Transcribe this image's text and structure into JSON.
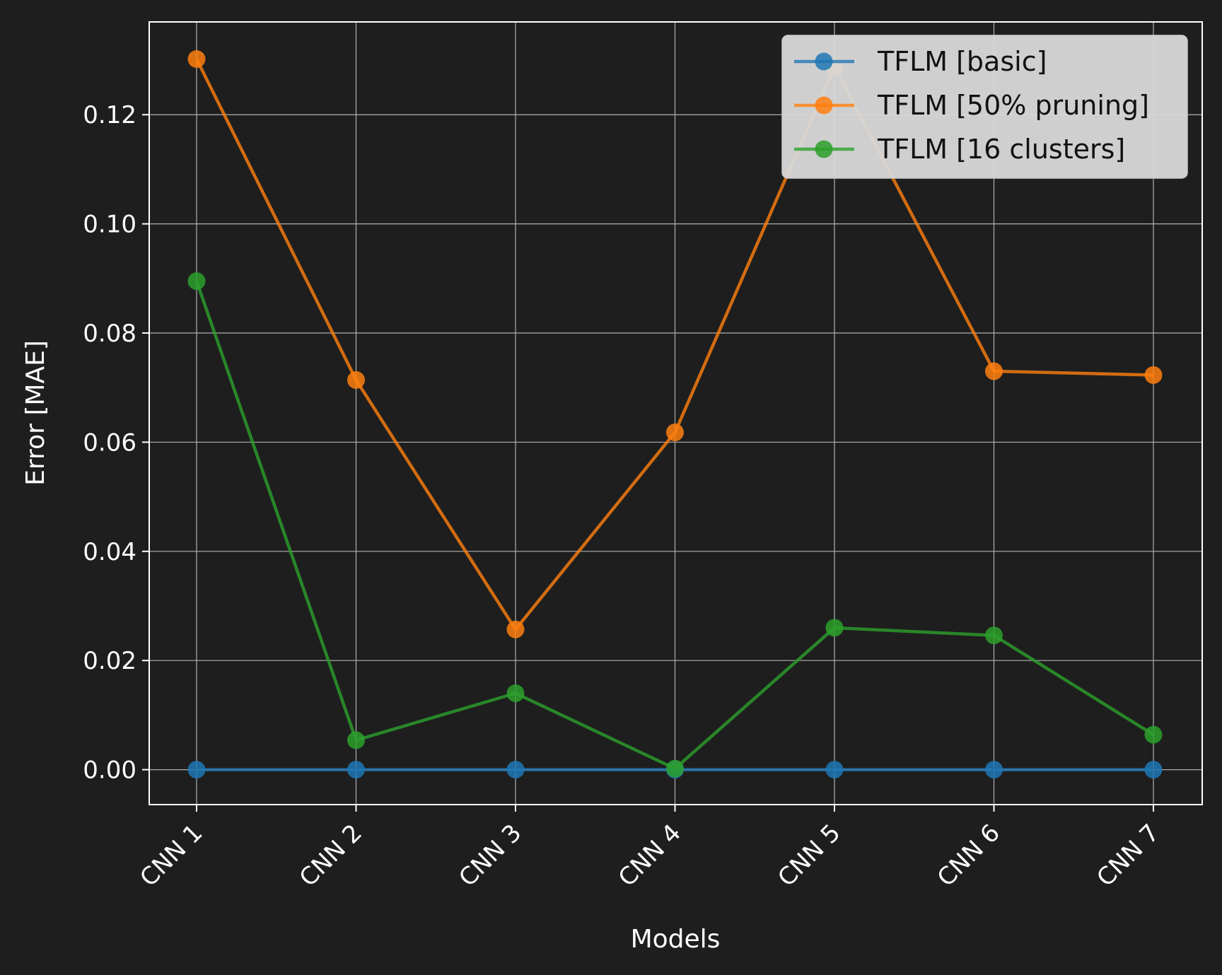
{
  "chart_data": {
    "type": "line",
    "title": "",
    "xlabel": "Models",
    "ylabel": "Error [MAE]",
    "categories": [
      "CNN 1",
      "CNN 2",
      "CNN 3",
      "CNN 4",
      "CNN 5",
      "CNN 6",
      "CNN 7"
    ],
    "ylim": [
      -0.0064,
      0.137
    ],
    "yticks": [
      0.0,
      0.02,
      0.04,
      0.06,
      0.08,
      0.1,
      0.12
    ],
    "ytick_labels": [
      "0.00",
      "0.02",
      "0.04",
      "0.06",
      "0.08",
      "0.10",
      "0.12"
    ],
    "grid": true,
    "legend_position": "top-right",
    "series": [
      {
        "name": "TFLM [basic]",
        "color": "#1f77b4",
        "values": [
          0.0,
          0.0,
          0.0,
          0.0,
          0.0,
          0.0,
          0.0
        ]
      },
      {
        "name": "TFLM [50% pruning]",
        "color": "#ff7f0e",
        "values": [
          0.1302,
          0.0714,
          0.0257,
          0.0618,
          0.1288,
          0.073,
          0.0723
        ]
      },
      {
        "name": "TFLM [16 clusters]",
        "color": "#2ca02c",
        "values": [
          0.0895,
          0.0054,
          0.014,
          0.0002,
          0.026,
          0.0246,
          0.0064
        ]
      }
    ]
  }
}
